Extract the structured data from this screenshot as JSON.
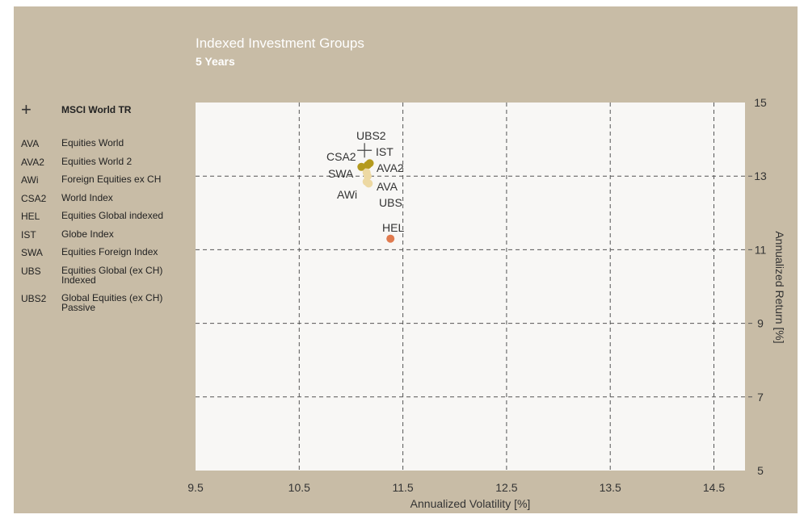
{
  "title": "Indexed Investment Groups",
  "subtitle": "5 Years",
  "benchmark": {
    "marker": "+",
    "label": "MSCI World TR"
  },
  "legend": [
    {
      "code": "AVA",
      "name": "Equities World"
    },
    {
      "code": "AVA2",
      "name": "Equities World 2"
    },
    {
      "code": "AWi",
      "name": "Foreign Equities ex CH"
    },
    {
      "code": "CSA2",
      "name": "World Index"
    },
    {
      "code": "HEL",
      "name": "Equities Global indexed"
    },
    {
      "code": "IST",
      "name": "Globe Index"
    },
    {
      "code": "SWA",
      "name": "Equities Foreign Index"
    },
    {
      "code": "UBS",
      "name": "Equities Global (ex CH) Indexed"
    },
    {
      "code": "UBS2",
      "name": "Global Equities (ex CH) Passive"
    }
  ],
  "colors": {
    "background": "#c8bca6",
    "plot_bg": "#f8f7f5",
    "grid": "#555555",
    "dark_gold": "#b49a1e",
    "light_gold": "#edd9a3",
    "orange": "#e07a4e"
  },
  "chart_data": {
    "type": "scatter",
    "xlabel": "Annualized Volatility [%]",
    "ylabel": "Annualized Return [%]",
    "xlim": [
      9.5,
      14.8
    ],
    "ylim": [
      5,
      15
    ],
    "xticks": [
      "9.5",
      "10.5",
      "11.5",
      "12.5",
      "13.5",
      "14.5"
    ],
    "yticks": [
      "5",
      "7",
      "9",
      "11",
      "13",
      "15"
    ],
    "grid": true,
    "benchmark": {
      "label": "UBS2",
      "x": 11.13,
      "y": 13.7
    },
    "points": [
      {
        "label": "IST",
        "x": 11.16,
        "y": 13.3,
        "color": "#b49a1e"
      },
      {
        "label": "CSA2",
        "x": 11.1,
        "y": 13.25,
        "color": "#b49a1e"
      },
      {
        "label": "AVA2",
        "x": 11.18,
        "y": 13.35,
        "color": "#b49a1e"
      },
      {
        "label": "SWA",
        "x": 11.15,
        "y": 13.1,
        "color": "#edd9a3"
      },
      {
        "label": "AVA",
        "x": 11.16,
        "y": 13.0,
        "color": "#edd9a3"
      },
      {
        "label": "AWi",
        "x": 11.15,
        "y": 12.85,
        "color": "#edd9a3"
      },
      {
        "label": "UBS",
        "x": 11.17,
        "y": 12.8,
        "color": "#edd9a3"
      },
      {
        "label": "HEL",
        "x": 11.38,
        "y": 11.3,
        "color": "#e07a4e"
      }
    ]
  }
}
